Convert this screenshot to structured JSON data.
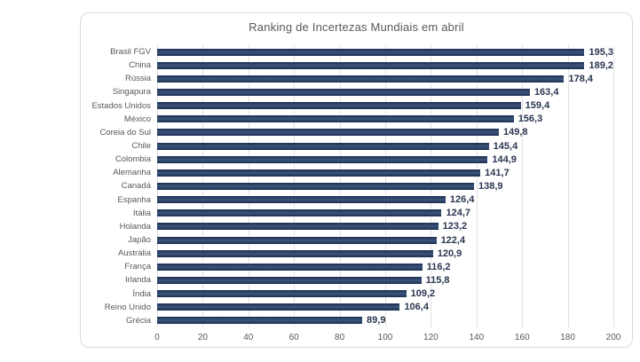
{
  "chart_data": {
    "type": "bar",
    "orientation": "horizontal",
    "title": "Ranking de Incertezas Mundiais em abril",
    "categories": [
      "Brasil FGV",
      "China",
      "Rússia",
      "Singapura",
      "Estados Unidos",
      "México",
      "Coreia do Sul",
      "Chile",
      "Colombia",
      "Alemanha",
      "Canadá",
      "Espanha",
      "Itália",
      "Holanda",
      "Japão",
      "Austrália",
      "França",
      "Irlanda",
      "Índia",
      "Reino Unido",
      "Grécia"
    ],
    "values": [
      195.3,
      189.2,
      178.4,
      163.4,
      159.4,
      156.3,
      149.8,
      145.4,
      144.9,
      141.7,
      138.9,
      126.4,
      124.7,
      123.2,
      122.4,
      120.9,
      116.2,
      115.8,
      109.2,
      106.4,
      89.9
    ],
    "value_labels": [
      "195,3",
      "189,2",
      "178,4",
      "163,4",
      "159,4",
      "156,3",
      "149,8",
      "145,4",
      "144,9",
      "141,7",
      "138,9",
      "126,4",
      "124,7",
      "123,2",
      "122,4",
      "120,9",
      "116,2",
      "115,8",
      "109,2",
      "106,4",
      "89,9"
    ],
    "xlabel": "",
    "ylabel": "",
    "xlim": [
      0,
      200
    ],
    "xticks": [
      0,
      20,
      40,
      60,
      80,
      100,
      120,
      140,
      160,
      180,
      200
    ],
    "grid": true,
    "legend": false,
    "colors": {
      "bar": "#1f3864",
      "value_label": "#2a3550",
      "axis_label": "#595959",
      "title": "#595959",
      "gridline": "#e2e2e2",
      "frame_border": "#d9d9d9"
    }
  }
}
